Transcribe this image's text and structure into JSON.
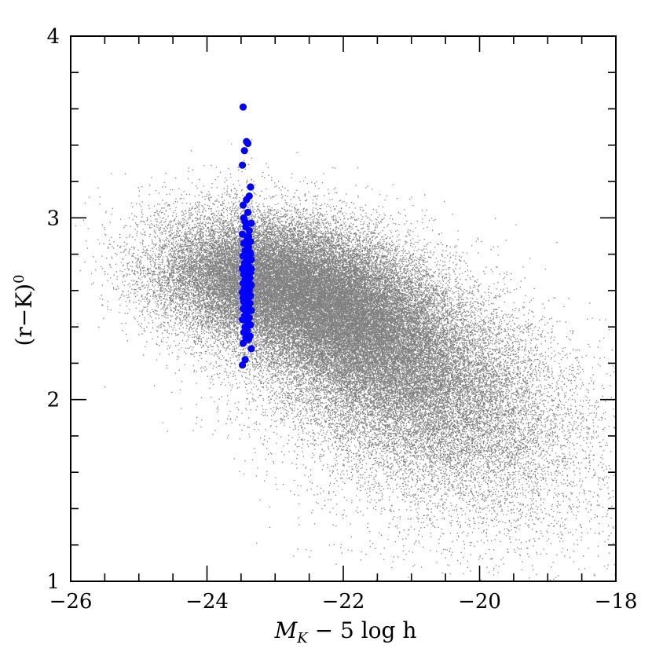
{
  "chart_data": {
    "type": "scatter",
    "xlabel": {
      "main": "M",
      "sub": "K",
      "rest": " − 5 log h"
    },
    "ylabel": {
      "main": "(r−K)",
      "sup": "0"
    },
    "xlim": [
      -26,
      -18
    ],
    "ylim": [
      1,
      4
    ],
    "x_ticks": [
      -26,
      -24,
      -22,
      -20,
      -18
    ],
    "x_tick_labels": [
      "−26",
      "−24",
      "−22",
      "−20",
      "−18"
    ],
    "y_ticks": [
      1,
      2,
      3,
      4
    ],
    "y_tick_labels": [
      "1",
      "2",
      "3",
      "4"
    ],
    "x_minor_step": 0.5,
    "y_minor_step": 0.2,
    "grid": false,
    "series": [
      {
        "color": "#808080",
        "marker": "dot",
        "distribution": {
          "n_points": 60000,
          "clusters": [
            {
              "weight": 0.45,
              "x_mean": -22.3,
              "x_sd": 0.9,
              "y_mean": 2.55,
              "y_sd": 0.22,
              "rho": -0.35
            },
            {
              "weight": 0.3,
              "x_mean": -21.3,
              "x_sd": 1.1,
              "y_mean": 2.2,
              "y_sd": 0.28,
              "rho": -0.45
            },
            {
              "weight": 0.15,
              "x_mean": -23.6,
              "x_sd": 0.7,
              "y_mean": 2.68,
              "y_sd": 0.17,
              "rho": -0.1
            },
            {
              "weight": 0.1,
              "x_mean": -20.5,
              "x_sd": 1.3,
              "y_mean": 1.85,
              "y_sd": 0.35,
              "rho": -0.3
            }
          ]
        }
      },
      {
        "color": "#0000ff",
        "marker": "circle",
        "points": [
          [
            -23.47,
            3.61
          ],
          [
            -23.42,
            3.42
          ],
          [
            -23.4,
            3.41
          ],
          [
            -23.45,
            3.37
          ],
          [
            -23.48,
            3.29
          ],
          [
            -23.36,
            3.17
          ],
          [
            -23.38,
            3.12
          ],
          [
            -23.42,
            3.1
          ],
          [
            -23.47,
            3.07
          ],
          [
            -23.4,
            3.03
          ],
          [
            -23.46,
            3.0
          ],
          [
            -23.44,
            2.98
          ],
          [
            -23.35,
            2.97
          ],
          [
            -23.43,
            2.95
          ],
          [
            -23.38,
            2.93
          ],
          [
            -23.48,
            2.91
          ],
          [
            -23.41,
            2.89
          ],
          [
            -23.36,
            2.87
          ],
          [
            -23.46,
            2.86
          ],
          [
            -23.39,
            2.84
          ],
          [
            -23.44,
            2.82
          ],
          [
            -23.37,
            2.81
          ],
          [
            -23.47,
            2.79
          ],
          [
            -23.42,
            2.78
          ],
          [
            -23.35,
            2.77
          ],
          [
            -23.45,
            2.75
          ],
          [
            -23.4,
            2.74
          ],
          [
            -23.38,
            2.73
          ],
          [
            -23.48,
            2.72
          ],
          [
            -23.43,
            2.71
          ],
          [
            -23.36,
            2.7
          ],
          [
            -23.46,
            2.69
          ],
          [
            -23.41,
            2.68
          ],
          [
            -23.37,
            2.67
          ],
          [
            -23.44,
            2.66
          ],
          [
            -23.39,
            2.65
          ],
          [
            -23.47,
            2.64
          ],
          [
            -23.35,
            2.63
          ],
          [
            -23.42,
            2.62
          ],
          [
            -23.45,
            2.61
          ],
          [
            -23.38,
            2.6
          ],
          [
            -23.48,
            2.59
          ],
          [
            -23.4,
            2.58
          ],
          [
            -23.36,
            2.57
          ],
          [
            -23.44,
            2.56
          ],
          [
            -23.41,
            2.55
          ],
          [
            -23.46,
            2.54
          ],
          [
            -23.37,
            2.53
          ],
          [
            -23.43,
            2.52
          ],
          [
            -23.39,
            2.51
          ],
          [
            -23.47,
            2.5
          ],
          [
            -23.35,
            2.49
          ],
          [
            -23.42,
            2.48
          ],
          [
            -23.45,
            2.46
          ],
          [
            -23.38,
            2.45
          ],
          [
            -23.48,
            2.44
          ],
          [
            -23.4,
            2.43
          ],
          [
            -23.36,
            2.41
          ],
          [
            -23.44,
            2.4
          ],
          [
            -23.41,
            2.38
          ],
          [
            -23.46,
            2.37
          ],
          [
            -23.37,
            2.35
          ],
          [
            -23.43,
            2.34
          ],
          [
            -23.39,
            2.33
          ],
          [
            -23.47,
            2.31
          ],
          [
            -23.35,
            2.28
          ],
          [
            -23.44,
            2.22
          ],
          [
            -23.48,
            2.19
          ],
          [
            -23.42,
            2.76
          ],
          [
            -23.4,
            2.66
          ],
          [
            -23.37,
            2.62
          ],
          [
            -23.45,
            2.7
          ],
          [
            -23.39,
            2.58
          ],
          [
            -23.43,
            2.74
          ],
          [
            -23.46,
            2.64
          ],
          [
            -23.36,
            2.8
          ],
          [
            -23.41,
            2.52
          ],
          [
            -23.38,
            2.69
          ],
          [
            -23.44,
            2.6
          ],
          [
            -23.4,
            2.85
          ],
          [
            -23.47,
            2.56
          ],
          [
            -23.35,
            2.72
          ],
          [
            -23.42,
            2.47
          ],
          [
            -23.39,
            2.9
          ]
        ]
      }
    ]
  }
}
